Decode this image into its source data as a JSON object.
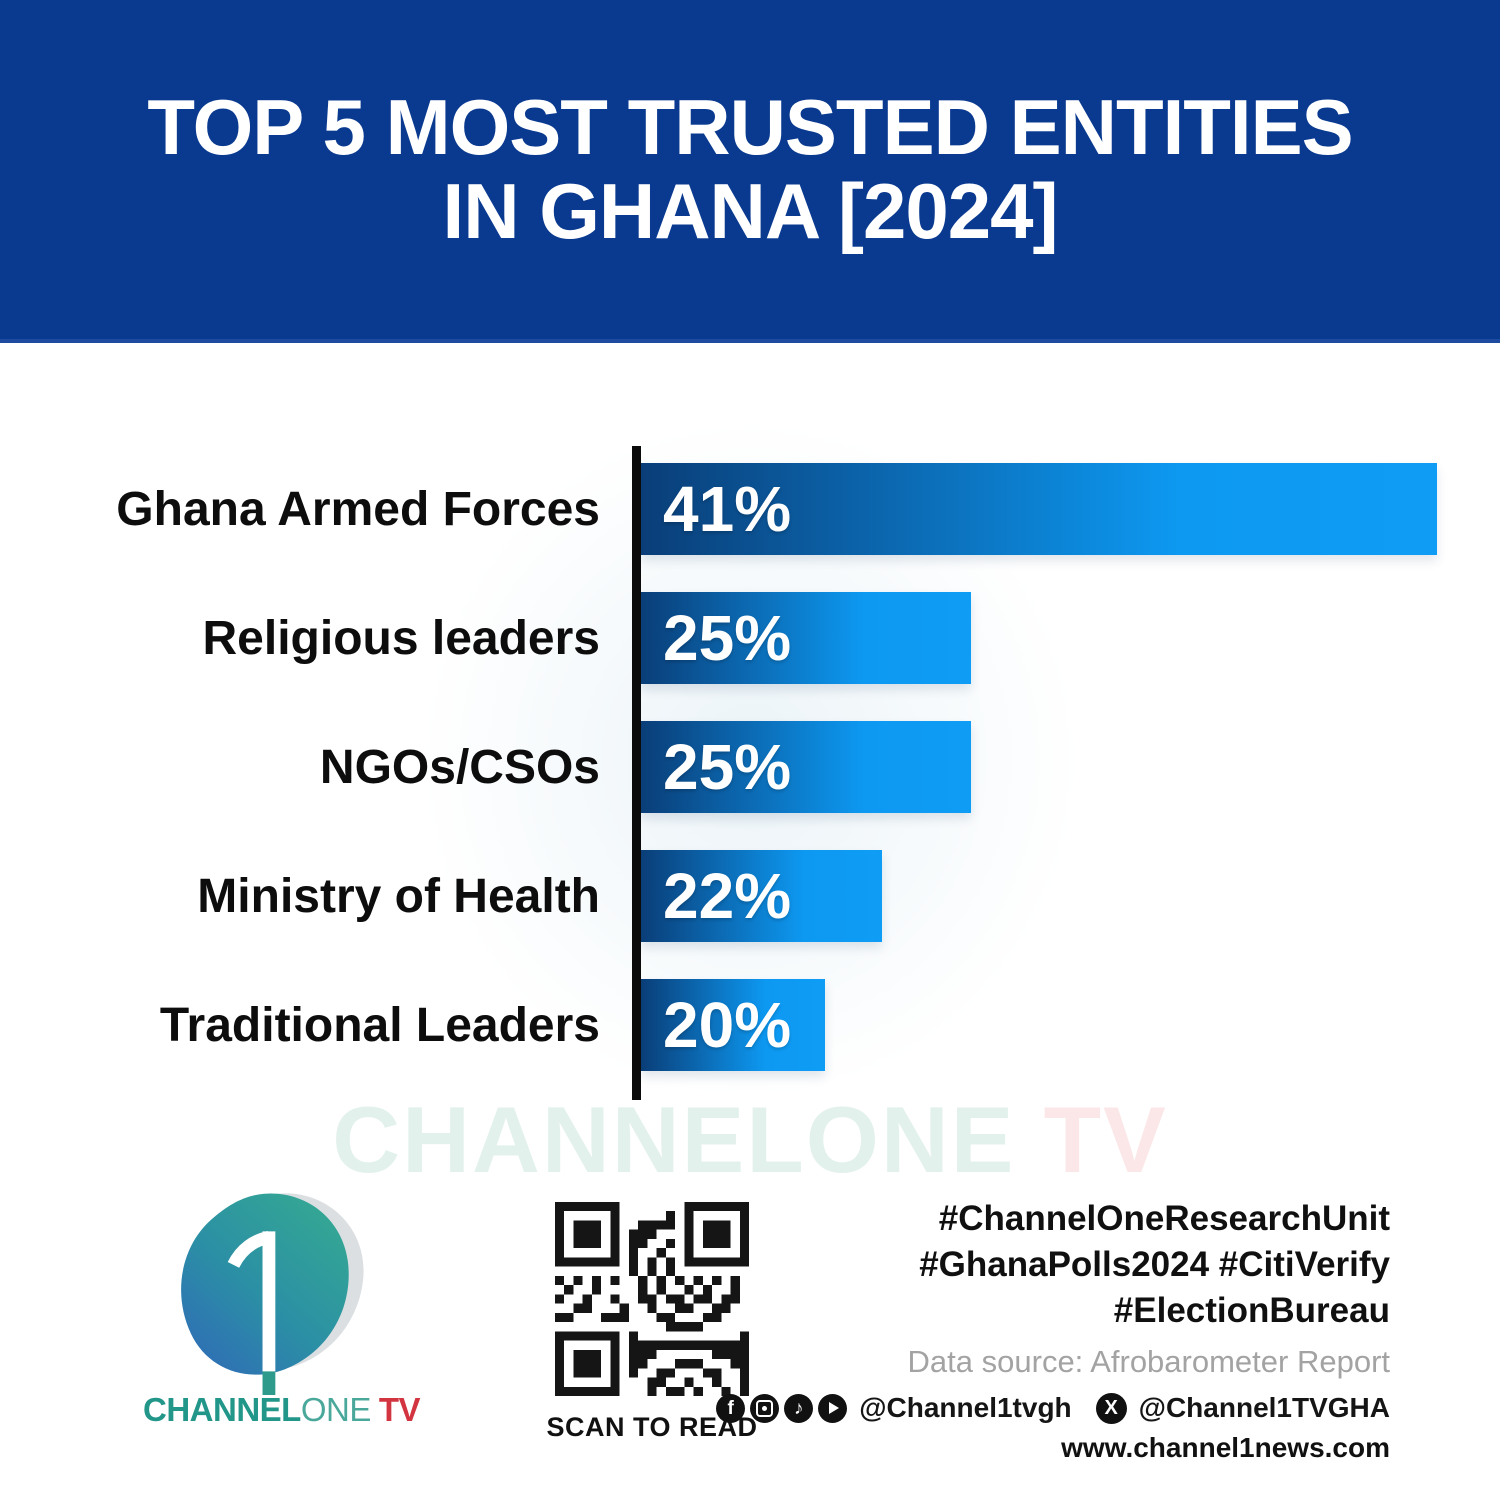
{
  "header": {
    "title_line1": "TOP 5 MOST TRUSTED ENTITIES",
    "title_line2": "IN GHANA [2024]"
  },
  "chart_data": {
    "type": "bar",
    "orientation": "horizontal",
    "title": "Top 5 Most Trusted Entities in Ghana [2024]",
    "categories": [
      "Ghana Armed Forces",
      "Religious leaders",
      "NGOs/CSOs",
      "Ministry of Health",
      "Traditional Leaders"
    ],
    "values": [
      41,
      25,
      25,
      22,
      20
    ],
    "value_labels": [
      "41%",
      "25%",
      "25%",
      "22%",
      "20%"
    ],
    "unit": "%",
    "xlim": [
      0,
      41
    ],
    "grid": false,
    "legend": false,
    "bar_relative_widths": [
      1.0,
      0.415,
      0.415,
      0.303,
      0.231
    ],
    "bar_gradient": [
      "#0a3e78",
      "#0d99f2"
    ],
    "axis_color": "#0b0b0b",
    "data_source": "Afrobarometer Report"
  },
  "watermark": {
    "part1": "CHANNELONE",
    "part2": " TV"
  },
  "footer": {
    "logo": {
      "digit": "1",
      "wordmark_channel": "CHANNEL",
      "wordmark_one": "ONE",
      "wordmark_tv": "TV"
    },
    "qr_caption": "SCAN TO READ",
    "hashtags": [
      "#ChannelOneResearchUnit",
      "#GhanaPolls2024 #CitiVerify",
      "#ElectionBureau"
    ],
    "source_line": "Data source: Afrobarometer Report",
    "social": {
      "icons": [
        "facebook-icon",
        "instagram-icon",
        "tiktok-icon",
        "youtube-icon",
        "x-icon"
      ],
      "glyphs": {
        "facebook": "f",
        "tiktok": "♪",
        "x": "X"
      },
      "handle_main": "@Channel1tvgh",
      "handle_x": "@Channel1TVGHA",
      "website": "www.channel1news.com"
    }
  },
  "colors": {
    "banner": "#0a3a90",
    "bar_start": "#0a3e78",
    "bar_end": "#0d99f2",
    "accent_teal": "#23968a",
    "accent_red": "#d2353f",
    "source_gray": "#a3a3a3"
  }
}
